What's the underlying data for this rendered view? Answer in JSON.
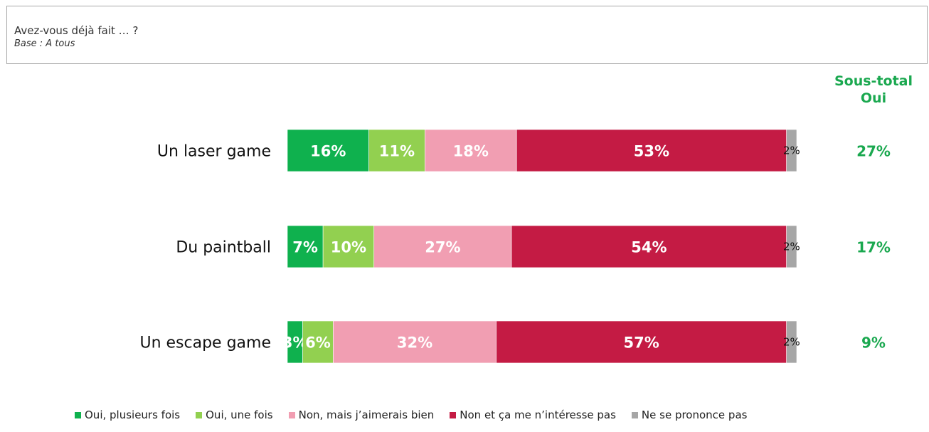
{
  "header": {
    "title": "Avez-vous déjà fait … ?",
    "base": "Base : A tous"
  },
  "subtotal": {
    "line1": "Sous-total",
    "line2": "Oui",
    "color": "#1aa84f"
  },
  "chart_data": {
    "type": "bar",
    "orientation": "horizontal",
    "stacked": true,
    "categories": [
      "Un laser game",
      "Du paintball",
      "Un escape game"
    ],
    "series": [
      {
        "name": "Oui, plusieurs fois",
        "color": "#0fb14e",
        "values": [
          16,
          7,
          3
        ],
        "labels": [
          "16%",
          "7%",
          "3%"
        ]
      },
      {
        "name": "Oui, une fois",
        "color": "#92d050",
        "values": [
          11,
          10,
          6
        ],
        "labels": [
          "11%",
          "10%",
          "6%"
        ]
      },
      {
        "name": "Non, mais j’aimerais bien",
        "color": "#f19eb2",
        "values": [
          18,
          27,
          32
        ],
        "labels": [
          "18%",
          "27%",
          "32%"
        ]
      },
      {
        "name": "Non et ça me n’intéresse pas",
        "color": "#c41b44",
        "values": [
          53,
          54,
          57
        ],
        "labels": [
          "53%",
          "54%",
          "57%"
        ]
      },
      {
        "name": "Ne se prononce pas",
        "color": "#a6a6a6",
        "values": [
          2,
          2,
          2
        ],
        "labels": [
          "2%",
          "2%",
          "2%"
        ]
      }
    ],
    "subtotals": [
      "27%",
      "17%",
      "9%"
    ],
    "xlim": [
      0,
      100
    ],
    "grid": false,
    "legend_position": "bottom"
  }
}
